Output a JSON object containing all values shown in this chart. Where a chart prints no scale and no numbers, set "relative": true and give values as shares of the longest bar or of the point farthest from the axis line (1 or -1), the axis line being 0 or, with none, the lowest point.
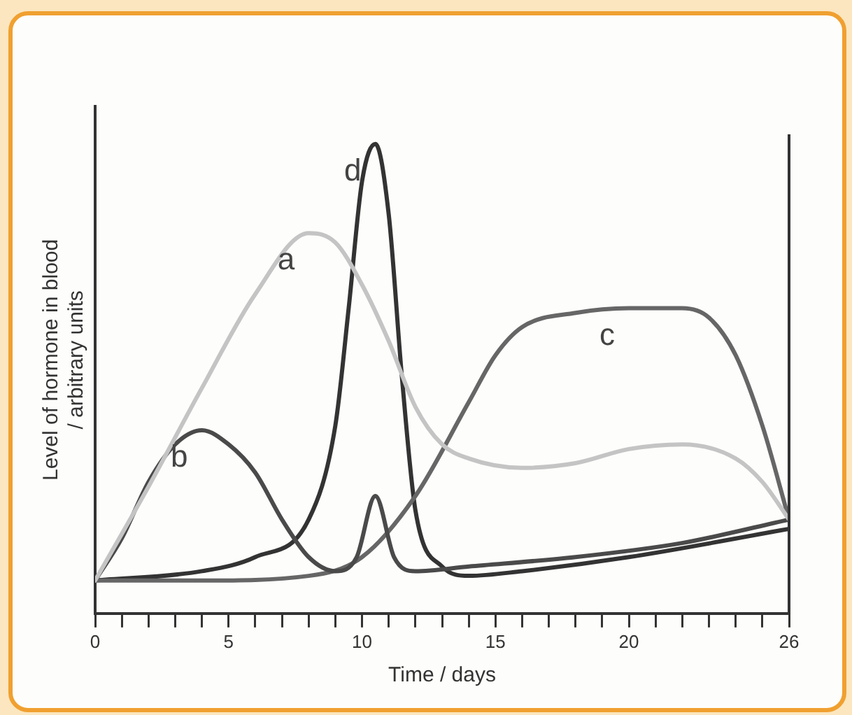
{
  "chart_data": {
    "type": "line",
    "relative": true,
    "xlabel": "Time / days",
    "ylabel": "Level of hormone in blood\n/ arbitrary units",
    "xlim": [
      0,
      26
    ],
    "xticks": [
      0,
      {
        "value": 1,
        "label": null
      },
      {
        "value": 2,
        "label": null
      },
      {
        "value": 3,
        "label": null
      },
      {
        "value": 4,
        "label": null
      },
      5,
      {
        "value": 6,
        "label": null
      },
      {
        "value": 7,
        "label": null
      },
      {
        "value": 8,
        "label": null
      },
      {
        "value": 9,
        "label": null
      },
      10,
      {
        "value": 11,
        "label": null
      },
      {
        "value": 12,
        "label": null
      },
      {
        "value": 13,
        "label": null
      },
      {
        "value": 14,
        "label": null
      },
      15,
      {
        "value": 16,
        "label": null
      },
      {
        "value": 17,
        "label": null
      },
      {
        "value": 18,
        "label": null
      },
      {
        "value": 19,
        "label": null
      },
      20,
      {
        "value": 21,
        "label": null
      },
      {
        "value": 22,
        "label": null
      },
      {
        "value": 23,
        "label": null
      },
      {
        "value": 24,
        "label": null
      },
      {
        "value": 25,
        "label": null
      },
      26
    ],
    "tick_labels": "x",
    "grid": false,
    "legend": false,
    "marker": "none",
    "series": [
      {
        "name": "a",
        "color": "#c4c4c4",
        "x": [
          0,
          2,
          4,
          6,
          8,
          9,
          10,
          11,
          12,
          13,
          14,
          16,
          18,
          20,
          22,
          24,
          25,
          26
        ],
        "values": [
          0.07,
          0.27,
          0.48,
          0.68,
          0.81,
          0.79,
          0.7,
          0.58,
          0.44,
          0.36,
          0.33,
          0.31,
          0.32,
          0.35,
          0.36,
          0.33,
          0.28,
          0.2
        ]
      },
      {
        "name": "b",
        "color": "#4a4a4a",
        "x": [
          0,
          1,
          2,
          3,
          4,
          5,
          6,
          7,
          8,
          9,
          9.8,
          10.5,
          11.2,
          12,
          14,
          18,
          22,
          26
        ],
        "values": [
          0.07,
          0.16,
          0.28,
          0.36,
          0.39,
          0.36,
          0.3,
          0.2,
          0.12,
          0.09,
          0.12,
          0.25,
          0.12,
          0.09,
          0.1,
          0.12,
          0.15,
          0.2
        ]
      },
      {
        "name": "c",
        "color": "#666666",
        "x": [
          0,
          4,
          8,
          10,
          12,
          14,
          15,
          16,
          18,
          20,
          22,
          23,
          24,
          25,
          26
        ],
        "values": [
          0.07,
          0.07,
          0.08,
          0.12,
          0.25,
          0.45,
          0.55,
          0.61,
          0.64,
          0.65,
          0.65,
          0.63,
          0.55,
          0.4,
          0.2
        ]
      },
      {
        "name": "d",
        "color": "#333333",
        "x": [
          0,
          4,
          6,
          8,
          9,
          9.5,
          10,
          10.5,
          11,
          11.5,
          12,
          13,
          14,
          16,
          20,
          26
        ],
        "values": [
          0.07,
          0.09,
          0.12,
          0.2,
          0.4,
          0.65,
          0.92,
          1,
          0.85,
          0.5,
          0.22,
          0.1,
          0.08,
          0.09,
          0.12,
          0.18
        ]
      }
    ]
  }
}
